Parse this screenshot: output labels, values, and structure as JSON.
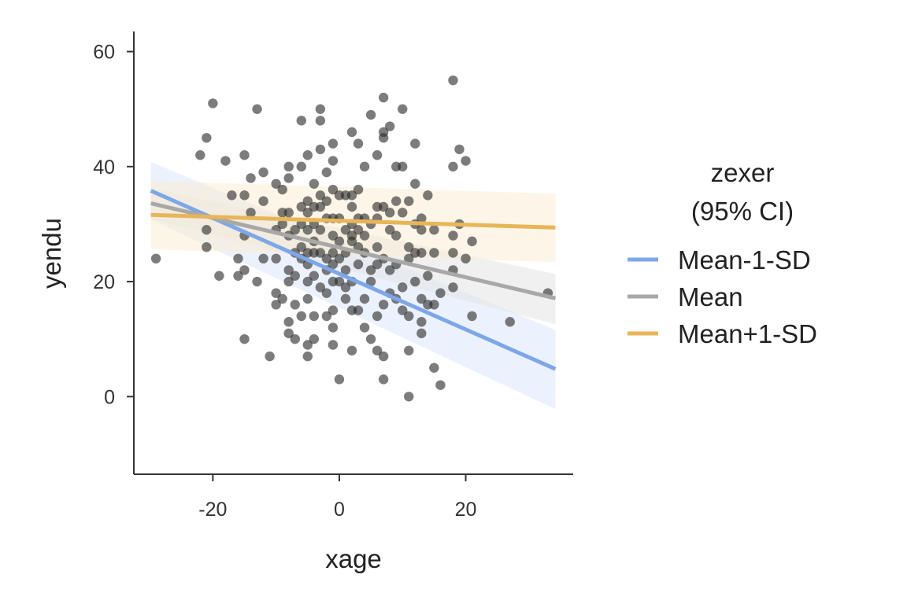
{
  "chart_data": {
    "type": "scatter",
    "title": "",
    "xlabel": "xage",
    "ylabel": "yendu",
    "xlim": [
      -32.5,
      37
    ],
    "ylim": [
      -13.5,
      63.5
    ],
    "x_ticks": [
      -20,
      0,
      20
    ],
    "x_tick_labels": [
      "-20",
      "0",
      "20"
    ],
    "y_ticks": [
      0,
      20,
      40,
      60
    ],
    "y_tick_labels": [
      "0",
      "20",
      "40",
      "60"
    ],
    "grid": false,
    "legend": {
      "title_line1": "zexer",
      "title_line2": "(95% CI)",
      "position": "right"
    },
    "points_color": "#2b2b2b",
    "series": [
      {
        "name": "Mean-1-SD",
        "color": "#7da7e8",
        "band_color": "#dce8fb",
        "x": [
          -29.8,
          34.2
        ],
        "y": [
          35.8,
          4.8
        ],
        "ci_upper": [
          40.8,
          11.6
        ],
        "ci_lower": [
          30.8,
          -2.2
        ]
      },
      {
        "name": "Mean",
        "color": "#a8a8a8",
        "band_color": "#e4e4e4",
        "x": [
          -29.8,
          34.2
        ],
        "y": [
          33.6,
          17.1
        ],
        "ci_upper": [
          36.3,
          21.3
        ],
        "ci_lower": [
          30.9,
          12.6
        ]
      },
      {
        "name": "Mean+1-SD",
        "color": "#e8b558",
        "band_color": "#fbecd4",
        "x": [
          -29.8,
          34.2
        ],
        "y": [
          31.6,
          29.4
        ],
        "ci_upper": [
          37.5,
          35.3
        ],
        "ci_lower": [
          25.6,
          23.4
        ]
      }
    ],
    "points": [
      [
        -29,
        24
      ],
      [
        -22,
        42
      ],
      [
        -21,
        45
      ],
      [
        -20,
        51
      ],
      [
        -21,
        29
      ],
      [
        -21,
        26
      ],
      [
        -19,
        21
      ],
      [
        -18,
        41
      ],
      [
        -17,
        35
      ],
      [
        -16,
        24
      ],
      [
        -16,
        21
      ],
      [
        -15,
        42
      ],
      [
        -15,
        35
      ],
      [
        -15,
        28
      ],
      [
        -15,
        22
      ],
      [
        -15,
        10
      ],
      [
        -14,
        38
      ],
      [
        -14,
        32
      ],
      [
        -13,
        50
      ],
      [
        -13,
        20
      ],
      [
        -12,
        39
      ],
      [
        -12,
        34
      ],
      [
        -12,
        24
      ],
      [
        -11,
        7
      ],
      [
        -10,
        37
      ],
      [
        -10,
        29
      ],
      [
        -10,
        24
      ],
      [
        -10,
        18
      ],
      [
        -10,
        16
      ],
      [
        -9,
        36
      ],
      [
        -9,
        32
      ],
      [
        -9,
        30
      ],
      [
        -9,
        17
      ],
      [
        -8,
        40
      ],
      [
        -8,
        38
      ],
      [
        -8,
        32
      ],
      [
        -8,
        28
      ],
      [
        -8,
        22
      ],
      [
        -8,
        20
      ],
      [
        -8,
        13
      ],
      [
        -8,
        11
      ],
      [
        -7,
        29
      ],
      [
        -7,
        25
      ],
      [
        -7,
        21
      ],
      [
        -7,
        16
      ],
      [
        -7,
        10
      ],
      [
        -6,
        40
      ],
      [
        -6,
        33
      ],
      [
        -6,
        30
      ],
      [
        -6,
        26
      ],
      [
        -6,
        24
      ],
      [
        -6,
        48
      ],
      [
        -6,
        14
      ],
      [
        -5,
        42
      ],
      [
        -5,
        34
      ],
      [
        -5,
        32
      ],
      [
        -5,
        29
      ],
      [
        -5,
        25
      ],
      [
        -5,
        23
      ],
      [
        -5,
        20
      ],
      [
        -5,
        17
      ],
      [
        -5,
        9
      ],
      [
        -5,
        7
      ],
      [
        -4,
        37
      ],
      [
        -4,
        33
      ],
      [
        -4,
        30
      ],
      [
        -4,
        27
      ],
      [
        -4,
        25
      ],
      [
        -4,
        21
      ],
      [
        -4,
        14
      ],
      [
        -4,
        10
      ],
      [
        -3,
        50
      ],
      [
        -3,
        48
      ],
      [
        -3,
        43
      ],
      [
        -3,
        35
      ],
      [
        -3,
        33
      ],
      [
        -3,
        29
      ],
      [
        -3,
        25
      ],
      [
        -3,
        19
      ],
      [
        -2,
        39
      ],
      [
        -2,
        34
      ],
      [
        -2,
        31
      ],
      [
        -2,
        24
      ],
      [
        -2,
        22
      ],
      [
        -2,
        18
      ],
      [
        -2,
        14
      ],
      [
        -1,
        44
      ],
      [
        -1,
        41
      ],
      [
        -1,
        36
      ],
      [
        -1,
        31
      ],
      [
        -1,
        28
      ],
      [
        -1,
        25
      ],
      [
        -1,
        23
      ],
      [
        -1,
        20
      ],
      [
        -1,
        15
      ],
      [
        -1,
        12
      ],
      [
        -1,
        9
      ],
      [
        0,
        35
      ],
      [
        0,
        31
      ],
      [
        0,
        27
      ],
      [
        0,
        24
      ],
      [
        0,
        20
      ],
      [
        0,
        3
      ],
      [
        1,
        35
      ],
      [
        1,
        29
      ],
      [
        1,
        25
      ],
      [
        1,
        22
      ],
      [
        1,
        19
      ],
      [
        1,
        17
      ],
      [
        2,
        46
      ],
      [
        2,
        35
      ],
      [
        2,
        33
      ],
      [
        2,
        30
      ],
      [
        2,
        28
      ],
      [
        2,
        27
      ],
      [
        2,
        20
      ],
      [
        2,
        15
      ],
      [
        2,
        8
      ],
      [
        3,
        44
      ],
      [
        3,
        36
      ],
      [
        3,
        31
      ],
      [
        3,
        29
      ],
      [
        3,
        26
      ],
      [
        3,
        23
      ],
      [
        3,
        15
      ],
      [
        4,
        40
      ],
      [
        4,
        31
      ],
      [
        4,
        28
      ],
      [
        4,
        25
      ],
      [
        4,
        17
      ],
      [
        4,
        12
      ],
      [
        5,
        49
      ],
      [
        5,
        30
      ],
      [
        5,
        22
      ],
      [
        5,
        20
      ],
      [
        5,
        10
      ],
      [
        6,
        42
      ],
      [
        6,
        33
      ],
      [
        6,
        31
      ],
      [
        6,
        26
      ],
      [
        6,
        23
      ],
      [
        6,
        14
      ],
      [
        6,
        8
      ],
      [
        7,
        52
      ],
      [
        7,
        46
      ],
      [
        7,
        45
      ],
      [
        7,
        33
      ],
      [
        7,
        24
      ],
      [
        7,
        16
      ],
      [
        7,
        7
      ],
      [
        7,
        3
      ],
      [
        8,
        47
      ],
      [
        8,
        32
      ],
      [
        8,
        29
      ],
      [
        8,
        22
      ],
      [
        8,
        18
      ],
      [
        9,
        40
      ],
      [
        9,
        34
      ],
      [
        9,
        28
      ],
      [
        9,
        23
      ],
      [
        9,
        17
      ],
      [
        10,
        50
      ],
      [
        10,
        40
      ],
      [
        10,
        32
      ],
      [
        10,
        19
      ],
      [
        10,
        15
      ],
      [
        11,
        34
      ],
      [
        11,
        26
      ],
      [
        11,
        24
      ],
      [
        11,
        14
      ],
      [
        11,
        8
      ],
      [
        11,
        0
      ],
      [
        12,
        44
      ],
      [
        12,
        37
      ],
      [
        12,
        30
      ],
      [
        12,
        25
      ],
      [
        12,
        20
      ],
      [
        13,
        31
      ],
      [
        13,
        29
      ],
      [
        13,
        25
      ],
      [
        13,
        17
      ],
      [
        13,
        13
      ],
      [
        13,
        11
      ],
      [
        14,
        35
      ],
      [
        14,
        21
      ],
      [
        14,
        16
      ],
      [
        15,
        29
      ],
      [
        15,
        25
      ],
      [
        15,
        16
      ],
      [
        15,
        5
      ],
      [
        16,
        18
      ],
      [
        16,
        2
      ],
      [
        18,
        55
      ],
      [
        18,
        40
      ],
      [
        18,
        28
      ],
      [
        18,
        25
      ],
      [
        18,
        22
      ],
      [
        18,
        19
      ],
      [
        19,
        43
      ],
      [
        19,
        30
      ],
      [
        20,
        41
      ],
      [
        20,
        24
      ],
      [
        21,
        27
      ],
      [
        21,
        14
      ],
      [
        27,
        13
      ],
      [
        33,
        18
      ]
    ]
  }
}
